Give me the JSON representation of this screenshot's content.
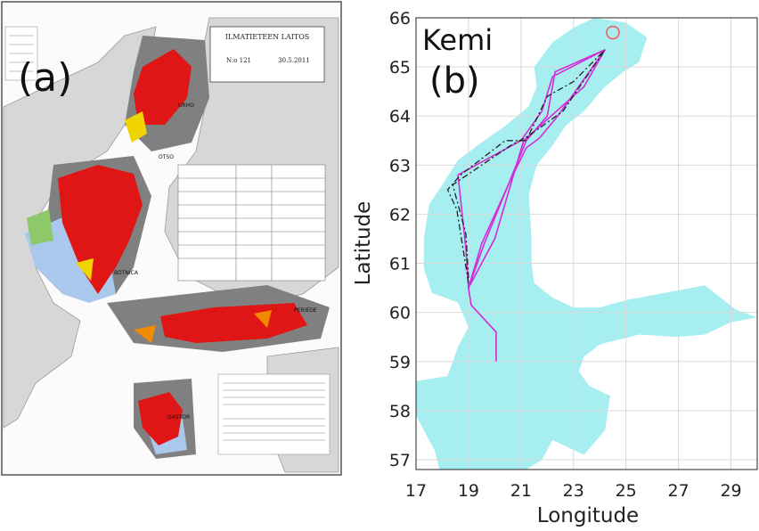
{
  "panel_a": {
    "label": "(a)",
    "map_header": {
      "org": "ILMATIETEEN LAITOS",
      "number": "N:o 121",
      "date": "30.5.2011"
    },
    "region_labels": [
      "BOTNICA",
      "PERIEDE",
      "GASTOR",
      "URHO",
      "OTSO"
    ],
    "colors": {
      "sea": "#ffffff",
      "land": "#d7d7d7",
      "ice_compact": "#e01515",
      "ice_open": "#808080",
      "fast_ice": "#a9c8ec",
      "ice_yellow": "#f0d400",
      "ice_orange": "#f08a00",
      "ice_green": "#8dc86a"
    }
  },
  "panel_b": {
    "label": "(b)",
    "place_label": "Kemi",
    "colors": {
      "sea": "#a6eef0",
      "route_solid": "#d42ad8",
      "route_dashed": "#222222",
      "marker": "#f25b5b",
      "grid": "#d9d9d9"
    }
  },
  "chart_data": {
    "type": "line",
    "title": "",
    "xlabel": "Longitude",
    "ylabel": "Latitude",
    "xlim": [
      17,
      30
    ],
    "ylim": [
      56.8,
      66
    ],
    "xticks": [
      17,
      19,
      21,
      23,
      25,
      27,
      29
    ],
    "yticks": [
      57,
      58,
      59,
      60,
      61,
      62,
      63,
      64,
      65,
      66
    ],
    "grid": true,
    "marker": {
      "name": "Kemi",
      "lon": 24.5,
      "lat": 65.7,
      "shape": "circle"
    },
    "series": [
      {
        "style": "solid",
        "points": [
          [
            20.05,
            59.0
          ],
          [
            20.05,
            59.6
          ],
          [
            19.1,
            60.15
          ],
          [
            19.0,
            60.5
          ],
          [
            19.5,
            61.4
          ],
          [
            20.6,
            62.7
          ],
          [
            21.2,
            63.35
          ],
          [
            21.7,
            63.55
          ],
          [
            22.4,
            64.0
          ],
          [
            24.2,
            65.35
          ]
        ]
      },
      {
        "style": "solid",
        "points": [
          [
            19.0,
            60.5
          ],
          [
            20.0,
            61.5
          ],
          [
            21.1,
            63.5
          ],
          [
            23.4,
            64.6
          ],
          [
            24.2,
            65.35
          ]
        ]
      },
      {
        "style": "solid",
        "points": [
          [
            19.0,
            60.5
          ],
          [
            18.9,
            61.3
          ],
          [
            18.6,
            62.8
          ],
          [
            21.0,
            63.5
          ],
          [
            21.8,
            64.1
          ],
          [
            22.2,
            64.8
          ],
          [
            24.2,
            65.35
          ]
        ]
      },
      {
        "style": "solid",
        "points": [
          [
            19.0,
            60.5
          ],
          [
            19.6,
            61.4
          ],
          [
            21.2,
            63.5
          ],
          [
            22.0,
            64.0
          ],
          [
            22.3,
            64.9
          ],
          [
            24.2,
            65.35
          ]
        ]
      },
      {
        "style": "dashed",
        "points": [
          [
            19.0,
            60.6
          ],
          [
            18.55,
            62.1
          ],
          [
            18.2,
            62.5
          ],
          [
            18.7,
            62.8
          ],
          [
            20.4,
            63.5
          ],
          [
            21.2,
            63.5
          ],
          [
            22.0,
            64.4
          ],
          [
            23.0,
            64.7
          ],
          [
            24.2,
            65.35
          ]
        ]
      },
      {
        "style": "dashed",
        "points": [
          [
            19.0,
            60.7
          ],
          [
            18.9,
            61.6
          ],
          [
            18.4,
            62.6
          ],
          [
            20.6,
            63.4
          ],
          [
            21.3,
            63.6
          ],
          [
            22.6,
            64.1
          ],
          [
            24.2,
            65.35
          ]
        ]
      }
    ]
  }
}
